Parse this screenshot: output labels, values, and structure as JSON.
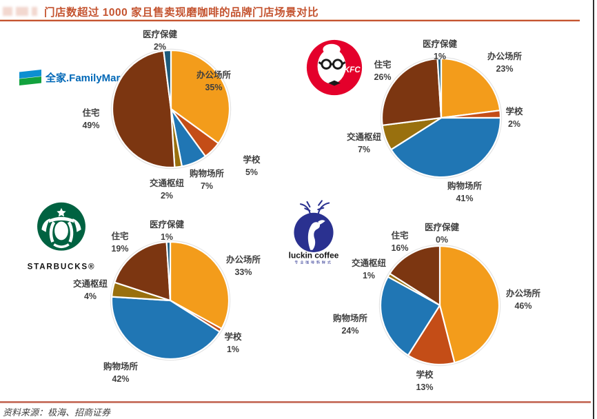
{
  "page": {
    "title": "门店数超过 1000 家且售卖现磨咖啡的品牌门店场景对比",
    "source": "资料来源：极海、招商证券"
  },
  "brands": {
    "familymart": {
      "label": "全家.FamilyMart."
    },
    "kfc": {
      "label": "KFC"
    },
    "starbucks": {
      "label": "STARBUCKS®"
    },
    "luckin": {
      "label": "luckin coffee",
      "slogan": "专业咖啡新鲜式"
    }
  },
  "colors": {
    "title": "#C4532F",
    "title_rule": "#C4532F",
    "source_rule": "#C97766",
    "label_text": "#3F3F3F",
    "slice_colors": {
      "办公场所": "#F39C1B",
      "学校": "#C44D17",
      "购物场所": "#2076B4",
      "交通枢纽": "#99700E",
      "住宅": "#7C3611",
      "医疗保健": "#1D5B7C"
    },
    "familymart_blue": "#0D8FD1",
    "familymart_green": "#12A23E",
    "kfc_red": "#E4002B",
    "starbucks_green": "#006241",
    "luckin_navy": "#2A3190"
  },
  "chart_data": [
    {
      "type": "pie",
      "brand": "全家 FamilyMart",
      "unit": "percent",
      "labels_position": "outside",
      "legend": "none",
      "categories": [
        "办公场所",
        "学校",
        "购物场所",
        "交通枢纽",
        "住宅",
        "医疗保健"
      ],
      "values": [
        35,
        5,
        7,
        2,
        49,
        2
      ]
    },
    {
      "type": "pie",
      "brand": "KFC",
      "unit": "percent",
      "labels_position": "outside",
      "legend": "none",
      "categories": [
        "办公场所",
        "学校",
        "购物场所",
        "交通枢纽",
        "住宅",
        "医疗保健"
      ],
      "values": [
        23,
        2,
        41,
        7,
        26,
        1
      ]
    },
    {
      "type": "pie",
      "brand": "STARBUCKS",
      "unit": "percent",
      "labels_position": "outside",
      "legend": "none",
      "categories": [
        "办公场所",
        "学校",
        "购物场所",
        "交通枢纽",
        "住宅",
        "医疗保健"
      ],
      "values": [
        33,
        1,
        42,
        4,
        19,
        1
      ]
    },
    {
      "type": "pie",
      "brand": "luckin coffee",
      "unit": "percent",
      "labels_position": "outside",
      "legend": "none",
      "categories": [
        "办公场所",
        "学校",
        "购物场所",
        "交通枢纽",
        "住宅",
        "医疗保健"
      ],
      "values": [
        46,
        13,
        24,
        1,
        16,
        0
      ]
    }
  ]
}
